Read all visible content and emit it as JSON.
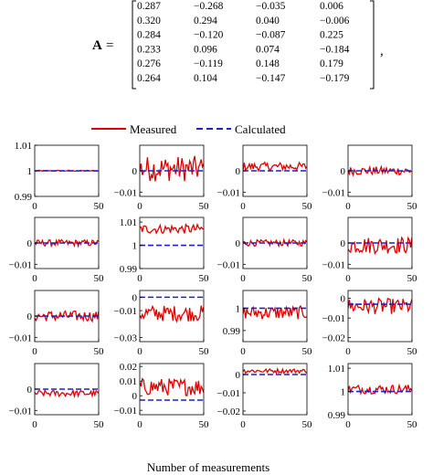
{
  "matrix": {
    "label": "A",
    "equals": "=",
    "comma": ",",
    "rows": [
      [
        "0.287",
        "−0.268",
        "−0.035",
        "0.006"
      ],
      [
        "0.320",
        "0.294",
        "0.040",
        "−0.006"
      ],
      [
        "0.284",
        "−0.120",
        "−0.087",
        "0.225"
      ],
      [
        "0.233",
        "0.096",
        "0.074",
        "−0.184"
      ],
      [
        "0.276",
        "−0.119",
        "0.148",
        "0.179"
      ],
      [
        "0.264",
        "0.104",
        "−0.147",
        "−0.179"
      ]
    ]
  },
  "legend": {
    "measured": "Measured",
    "calculated": "Calculated",
    "measured_color": "#e00000",
    "calculated_color": "#1f1fd0"
  },
  "chart_data": {
    "type": "line",
    "layout": "4x4 small multiples",
    "xlabel": "Number of measurements",
    "xlim": [
      0,
      50
    ],
    "xticks": [
      "0",
      "50"
    ],
    "series_names": [
      "Measured",
      "Calculated"
    ],
    "panels": [
      {
        "id": "r1c1",
        "yticks": [
          {
            "v": 1.01,
            "t": "1.01"
          },
          {
            "v": 1,
            "t": "1"
          },
          {
            "v": 0.99,
            "t": "0.99"
          }
        ],
        "ylim": [
          0.99,
          1.01
        ],
        "calculated": 1,
        "measured_center": 1,
        "measured_noise": 0.0002,
        "show_xticks": true
      },
      {
        "id": "r1c2",
        "yticks": [
          {
            "v": 0,
            "t": "0"
          },
          {
            "v": -0.01,
            "t": "−0.01"
          }
        ],
        "ylim": [
          -0.012,
          0.012
        ],
        "calculated": 0,
        "measured_center": 0.001,
        "measured_noise": 0.006,
        "show_xticks": true
      },
      {
        "id": "r1c3",
        "yticks": [
          {
            "v": 0,
            "t": "0"
          },
          {
            "v": -0.01,
            "t": "−0.01"
          }
        ],
        "ylim": [
          -0.012,
          0.012
        ],
        "calculated": 0,
        "measured_center": 0.002,
        "measured_noise": 0.002,
        "show_xticks": true
      },
      {
        "id": "r1c4",
        "yticks": [
          {
            "v": 0,
            "t": "0"
          },
          {
            "v": -0.01,
            "t": "−0.01"
          }
        ],
        "ylim": [
          -0.012,
          0.012
        ],
        "calculated": 0,
        "measured_center": 0,
        "measured_noise": 0.002,
        "show_xticks": true
      },
      {
        "id": "r2c1",
        "yticks": [
          {
            "v": 0,
            "t": "0"
          },
          {
            "v": -0.01,
            "t": "−0.01"
          }
        ],
        "ylim": [
          -0.012,
          0.012
        ],
        "calculated": 0,
        "measured_center": 0,
        "measured_noise": 0.0015,
        "show_xticks": true
      },
      {
        "id": "r2c2",
        "yticks": [
          {
            "v": 1.01,
            "t": "1.01"
          },
          {
            "v": 1,
            "t": "1"
          },
          {
            "v": 0.99,
            "t": "0.99"
          }
        ],
        "ylim": [
          0.99,
          1.012
        ],
        "calculated": 1,
        "measured_center": 1.007,
        "measured_noise": 0.002,
        "show_xticks": true
      },
      {
        "id": "r2c3",
        "yticks": [
          {
            "v": 0,
            "t": "0"
          },
          {
            "v": -0.01,
            "t": "−0.01"
          }
        ],
        "ylim": [
          -0.012,
          0.012
        ],
        "calculated": 0,
        "measured_center": 0,
        "measured_noise": 0.0015,
        "show_xticks": true
      },
      {
        "id": "r2c4",
        "yticks": [
          {
            "v": 0,
            "t": "0"
          },
          {
            "v": -0.01,
            "t": "−0.01"
          }
        ],
        "ylim": [
          -0.012,
          0.012
        ],
        "calculated": 0,
        "measured_center": -0.001,
        "measured_noise": 0.004,
        "show_xticks": true
      },
      {
        "id": "r3c1",
        "yticks": [
          {
            "v": 0,
            "t": "0"
          },
          {
            "v": -0.01,
            "t": "−0.01"
          }
        ],
        "ylim": [
          -0.012,
          0.012
        ],
        "calculated": 0,
        "measured_center": 0,
        "measured_noise": 0.0025,
        "show_xticks": true
      },
      {
        "id": "r3c2",
        "yticks": [
          {
            "v": 0,
            "t": "0"
          },
          {
            "v": -0.01,
            "t": "−0.01"
          },
          {
            "v": -0.03,
            "t": "−0.03"
          }
        ],
        "ylim": [
          -0.033,
          0.005
        ],
        "calculated": 0,
        "measured_center": -0.012,
        "measured_noise": 0.006,
        "show_xticks": true
      },
      {
        "id": "r3c3",
        "yticks": [
          {
            "v": 1,
            "t": "1"
          },
          {
            "v": 0.99,
            "t": "0.99"
          }
        ],
        "ylim": [
          0.985,
          1.008
        ],
        "calculated": 1,
        "measured_center": 0.998,
        "measured_noise": 0.003,
        "show_xticks": true
      },
      {
        "id": "r3c4",
        "yticks": [
          {
            "v": 0,
            "t": "0"
          },
          {
            "v": -0.01,
            "t": "−0.01"
          },
          {
            "v": -0.02,
            "t": "−0.02"
          }
        ],
        "ylim": [
          -0.022,
          0.004
        ],
        "calculated": -0.003,
        "measured_center": -0.004,
        "measured_noise": 0.004,
        "show_xticks": true
      },
      {
        "id": "r4c1",
        "yticks": [
          {
            "v": 0,
            "t": "0"
          },
          {
            "v": -0.01,
            "t": "−0.01"
          }
        ],
        "ylim": [
          -0.012,
          0.012
        ],
        "calculated": 0,
        "measured_center": -0.002,
        "measured_noise": 0.0015,
        "show_xticks": true
      },
      {
        "id": "r4c2",
        "yticks": [
          {
            "v": 0.02,
            "t": "0.02"
          },
          {
            "v": 0.01,
            "t": "0.01"
          },
          {
            "v": 0,
            "t": "0"
          },
          {
            "v": -0.01,
            "t": "−0.01"
          }
        ],
        "ylim": [
          -0.013,
          0.022
        ],
        "calculated": -0.003,
        "measured_center": 0.006,
        "measured_noise": 0.006,
        "show_xticks": true
      },
      {
        "id": "r4c3",
        "yticks": [
          {
            "v": 0,
            "t": "0"
          },
          {
            "v": -0.01,
            "t": "−0.01"
          },
          {
            "v": -0.02,
            "t": "−0.02"
          }
        ],
        "ylim": [
          -0.022,
          0.006
        ],
        "calculated": 0,
        "measured_center": 0.002,
        "measured_noise": 0.0012,
        "show_xticks": true
      },
      {
        "id": "r4c4",
        "yticks": [
          {
            "v": 1.01,
            "t": "1.01"
          },
          {
            "v": 1,
            "t": "1"
          },
          {
            "v": 0.99,
            "t": "0.99"
          }
        ],
        "ylim": [
          0.99,
          1.012
        ],
        "calculated": 1,
        "measured_center": 1.001,
        "measured_noise": 0.002,
        "show_xticks": true
      }
    ]
  }
}
